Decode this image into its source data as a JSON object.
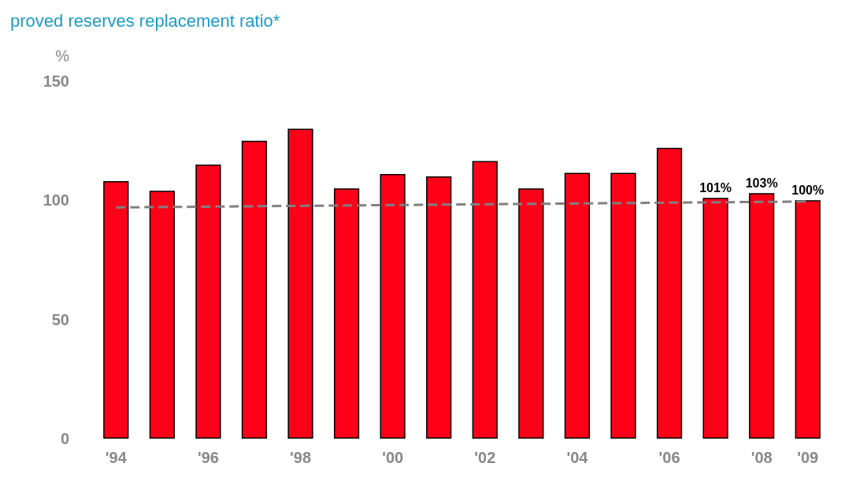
{
  "chart_data": {
    "type": "bar",
    "title": "proved reserves replacement ratio*",
    "ylabel": "%",
    "categories": [
      "'94",
      null,
      "'96",
      null,
      "'98",
      null,
      "'00",
      null,
      "'02",
      null,
      "'04",
      null,
      "'06",
      null,
      "'08",
      "'09"
    ],
    "series": [
      {
        "color": "#ff0019",
        "values": [
          108,
          104,
          115,
          125,
          130,
          105,
          111,
          110,
          116.5,
          105,
          111.5,
          111.5,
          122,
          101,
          103,
          100
        ],
        "value_labels": [
          null,
          null,
          null,
          null,
          null,
          null,
          null,
          null,
          null,
          null,
          null,
          null,
          null,
          "101%",
          "103%",
          "100%"
        ]
      },
      {
        "type": "line",
        "color": "#808080",
        "line_style": "dashed",
        "marker": "none",
        "x": [
          "'94",
          "'09"
        ],
        "values": [
          97,
          99.5
        ]
      }
    ],
    "ylim": [
      0,
      150
    ],
    "yticks": [
      0,
      50,
      100,
      150
    ],
    "grid": false
  }
}
